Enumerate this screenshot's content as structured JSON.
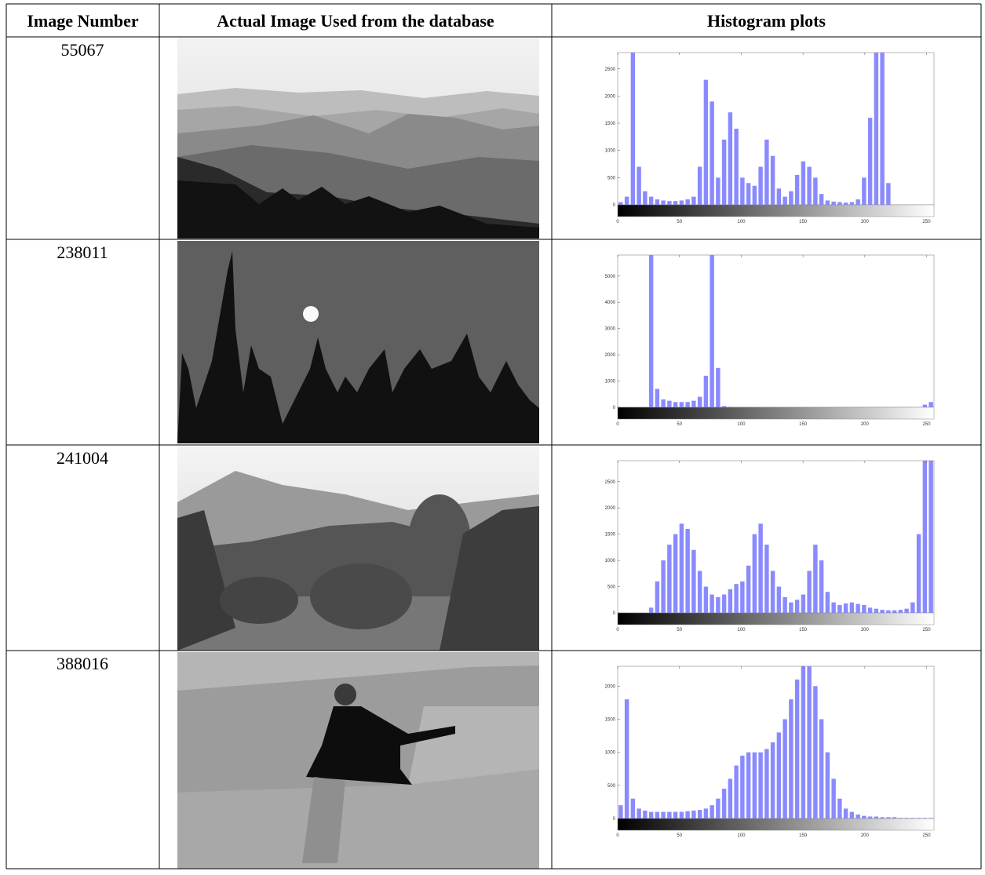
{
  "table": {
    "headers": [
      "Image Number",
      "Actual Image Used from the database",
      "Histogram plots"
    ],
    "rows": [
      {
        "image_number": "55067",
        "histogram": {
          "type": "histogram",
          "xlim": [
            0,
            256
          ],
          "xticks": [
            0,
            50,
            100,
            150,
            200,
            250
          ],
          "ylim": [
            0,
            2800
          ],
          "yticks": [
            0,
            500,
            1000,
            1500,
            2000,
            2500
          ],
          "color": "#8a8aff",
          "values": [
            50,
            150,
            2800,
            700,
            250,
            150,
            100,
            80,
            70,
            70,
            80,
            100,
            150,
            700,
            2300,
            1900,
            500,
            1200,
            1700,
            1400,
            500,
            400,
            350,
            700,
            1200,
            900,
            300,
            150,
            250,
            550,
            800,
            700,
            500,
            200,
            80,
            60,
            50,
            40,
            50,
            100,
            500,
            1600,
            2800,
            2800,
            400,
            0,
            0,
            0,
            0,
            0,
            0,
            0
          ]
        }
      },
      {
        "image_number": "238011",
        "histogram": {
          "type": "histogram",
          "xlim": [
            0,
            256
          ],
          "xticks": [
            0,
            50,
            100,
            150,
            200,
            250
          ],
          "ylim": [
            0,
            5800
          ],
          "yticks": [
            0,
            1000,
            2000,
            3000,
            4000,
            5000
          ],
          "color": "#8a8aff",
          "values": [
            0,
            0,
            0,
            0,
            0,
            5800,
            700,
            300,
            250,
            200,
            200,
            200,
            250,
            400,
            1200,
            5800,
            1500,
            50,
            20,
            10,
            10,
            10,
            10,
            10,
            5,
            5,
            5,
            5,
            5,
            5,
            0,
            0,
            0,
            0,
            0,
            0,
            0,
            0,
            0,
            0,
            0,
            0,
            0,
            0,
            0,
            0,
            0,
            0,
            0,
            0,
            100,
            200
          ]
        }
      },
      {
        "image_number": "241004",
        "histogram": {
          "type": "histogram",
          "xlim": [
            0,
            256
          ],
          "xticks": [
            0,
            50,
            100,
            150,
            200,
            250
          ],
          "ylim": [
            0,
            2900
          ],
          "yticks": [
            0,
            500,
            1000,
            1500,
            2000,
            2500
          ],
          "color": "#8a8aff",
          "values": [
            0,
            0,
            0,
            0,
            0,
            100,
            600,
            1000,
            1300,
            1500,
            1700,
            1600,
            1200,
            800,
            500,
            350,
            300,
            350,
            450,
            550,
            600,
            900,
            1500,
            1700,
            1300,
            800,
            500,
            300,
            200,
            250,
            350,
            800,
            1300,
            1000,
            400,
            200,
            150,
            180,
            200,
            170,
            150,
            100,
            80,
            60,
            50,
            50,
            60,
            80,
            200,
            1500,
            2900,
            2900
          ]
        }
      },
      {
        "image_number": "388016",
        "histogram": {
          "type": "histogram",
          "xlim": [
            0,
            256
          ],
          "xticks": [
            0,
            50,
            100,
            150,
            200,
            250
          ],
          "ylim": [
            0,
            2300
          ],
          "yticks": [
            0,
            500,
            1000,
            1500,
            2000
          ],
          "color": "#8a8aff",
          "values": [
            200,
            1800,
            300,
            150,
            120,
            100,
            100,
            100,
            100,
            100,
            100,
            110,
            120,
            130,
            150,
            200,
            300,
            450,
            600,
            800,
            950,
            1000,
            1000,
            1000,
            1050,
            1150,
            1300,
            1500,
            1800,
            2100,
            2300,
            2300,
            2000,
            1500,
            1000,
            600,
            300,
            150,
            100,
            60,
            40,
            30,
            30,
            20,
            20,
            20,
            10,
            10,
            10,
            10,
            10,
            10
          ]
        }
      }
    ]
  }
}
